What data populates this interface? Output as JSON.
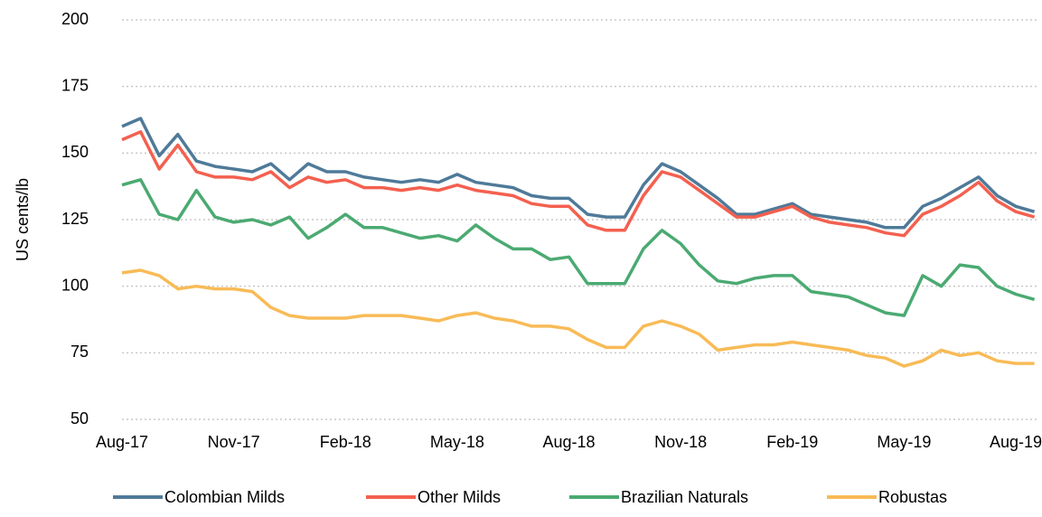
{
  "chart_data": {
    "type": "line",
    "ylabel": "US cents/lb",
    "categories": [
      "Aug-17",
      null,
      null,
      null,
      null,
      null,
      "Nov-17",
      null,
      null,
      null,
      null,
      null,
      "Feb-18",
      null,
      null,
      null,
      null,
      null,
      "May-18",
      null,
      null,
      null,
      null,
      null,
      "Aug-18",
      null,
      null,
      null,
      null,
      null,
      "Nov-18",
      null,
      null,
      null,
      null,
      null,
      "Feb-19",
      null,
      null,
      null,
      null,
      null,
      "May-19",
      null,
      null,
      null,
      null,
      null,
      "Aug-19",
      null
    ],
    "series": [
      {
        "name": "Colombian Milds",
        "color": "#4f7a99",
        "values": [
          160,
          163,
          149,
          157,
          147,
          145,
          144,
          143,
          146,
          140,
          146,
          143,
          143,
          141,
          140,
          139,
          140,
          139,
          142,
          139,
          138,
          137,
          134,
          133,
          133,
          127,
          126,
          126,
          138,
          146,
          143,
          138,
          133,
          127,
          127,
          129,
          131,
          127,
          126,
          125,
          124,
          122,
          122,
          130,
          133,
          137,
          141,
          134,
          130,
          128
        ]
      },
      {
        "name": "Other Milds",
        "color": "#f4604f",
        "values": [
          155,
          158,
          144,
          153,
          143,
          141,
          141,
          140,
          143,
          137,
          141,
          139,
          140,
          137,
          137,
          136,
          137,
          136,
          138,
          136,
          135,
          134,
          131,
          130,
          130,
          123,
          121,
          121,
          134,
          143,
          141,
          136,
          131,
          126,
          126,
          128,
          130,
          126,
          124,
          123,
          122,
          120,
          119,
          127,
          130,
          134,
          139,
          132,
          128,
          126
        ]
      },
      {
        "name": "Brazilian Naturals",
        "color": "#4baa72",
        "values": [
          138,
          140,
          127,
          125,
          136,
          126,
          124,
          125,
          123,
          126,
          118,
          122,
          127,
          122,
          122,
          120,
          118,
          119,
          117,
          123,
          118,
          114,
          114,
          110,
          111,
          101,
          101,
          101,
          114,
          121,
          116,
          108,
          102,
          101,
          103,
          104,
          104,
          98,
          97,
          96,
          93,
          90,
          89,
          104,
          100,
          108,
          107,
          100,
          97,
          95
        ]
      },
      {
        "name": "Robustas",
        "color": "#f8bb57",
        "values": [
          105,
          106,
          104,
          99,
          100,
          99,
          99,
          98,
          92,
          89,
          88,
          88,
          88,
          89,
          89,
          89,
          88,
          87,
          89,
          90,
          88,
          87,
          85,
          85,
          84,
          80,
          77,
          77,
          85,
          87,
          85,
          82,
          76,
          77,
          78,
          78,
          79,
          78,
          77,
          76,
          74,
          73,
          70,
          72,
          76,
          74,
          75,
          72,
          71,
          71
        ]
      }
    ],
    "ylim": [
      50,
      200
    ],
    "yticks": [
      50,
      75,
      100,
      125,
      150,
      175,
      200
    ],
    "grid": true,
    "legend": "bottom"
  }
}
